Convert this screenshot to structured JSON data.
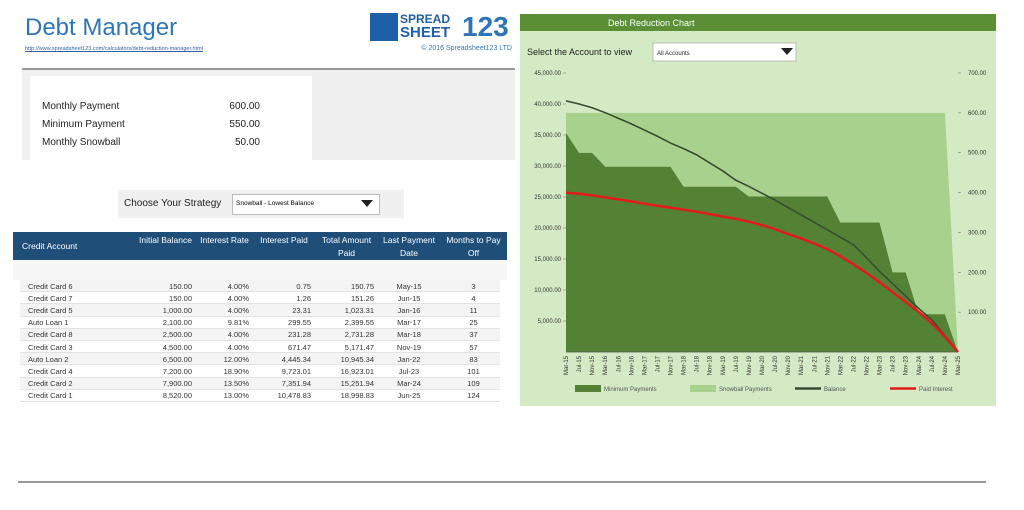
{
  "header": {
    "title": "Debt Manager",
    "link": "http://www.spreadsheet123.com/calculators/debt-reduction-manager.html",
    "logo": [
      "SPREAD",
      "SHEET",
      "123"
    ],
    "copyright": "© 2016 Spreadsheet123 LTD"
  },
  "summary": [
    {
      "label": "Monthly Payment",
      "value": "600.00"
    },
    {
      "label": "Minimum Payment",
      "value": "550.00"
    },
    {
      "label": "Monthly Snowball",
      "value": "50.00"
    }
  ],
  "strategy": {
    "label": "Choose Your Strategy",
    "selected": "Snowball - Lowest Balance"
  },
  "table": {
    "columns": [
      "Credit Account",
      "Initial Balance",
      "Interest Rate",
      "Interest Paid",
      "Total Amount Paid",
      "Last Payment Date",
      "Months to Pay Off"
    ],
    "rows": [
      [
        "Credit Card 6",
        "150.00",
        "4.00%",
        "0.75",
        "150.75",
        "May-15",
        "3"
      ],
      [
        "Credit Card 7",
        "150.00",
        "4.00%",
        "1.26",
        "151.26",
        "Jun-15",
        "4"
      ],
      [
        "Credit Card 5",
        "1,000.00",
        "4.00%",
        "23.31",
        "1,023.31",
        "Jan-16",
        "11"
      ],
      [
        "Auto Loan 1",
        "2,100.00",
        "9.81%",
        "299.55",
        "2,399.55",
        "Mar-17",
        "25"
      ],
      [
        "Credit Card 8",
        "2,500.00",
        "4.00%",
        "231.28",
        "2,731.28",
        "Mar-18",
        "37"
      ],
      [
        "Credit Card 3",
        "4,500.00",
        "4.00%",
        "671.47",
        "5,171.47",
        "Nov-19",
        "57"
      ],
      [
        "Auto Loan 2",
        "6,500.00",
        "12.00%",
        "4,445.34",
        "10,945.34",
        "Jan-22",
        "83"
      ],
      [
        "Credit Card 4",
        "7,200.00",
        "18.90%",
        "9,723.01",
        "16,923.01",
        "Jul-23",
        "101"
      ],
      [
        "Credit Card 2",
        "7,900.00",
        "13.50%",
        "7,351.94",
        "15,251.94",
        "Mar-24",
        "109"
      ],
      [
        "Credit Card 1",
        "8,520.00",
        "13.00%",
        "10,478.83",
        "18,998.83",
        "Jun-25",
        "124"
      ]
    ]
  },
  "chart": {
    "type": "area-line",
    "title": "Debt Reduction Chart",
    "selector_label": "Select the Account to view",
    "selector_value": "All Accounts",
    "categories": [
      "Mar-15",
      "Jul-15",
      "Nov-15",
      "Mar-16",
      "Jul-16",
      "Nov-16",
      "Mar-17",
      "Jul-17",
      "Nov-17",
      "Mar-18",
      "Jul-18",
      "Nov-18",
      "Mar-19",
      "Jul-19",
      "Nov-19",
      "Mar-20",
      "Jul-20",
      "Nov-20",
      "Mar-21",
      "Jul-21",
      "Nov-21",
      "Mar-22",
      "Jul-22",
      "Nov-22",
      "Mar-23",
      "Jul-23",
      "Nov-23",
      "Mar-24",
      "Jul-24",
      "Nov-24",
      "Mar-25"
    ],
    "ylim": [
      0,
      45000
    ],
    "yticks": [
      {
        "value": 5000,
        "label": "5,000.00"
      },
      {
        "value": 10000,
        "label": "10,000.00"
      },
      {
        "value": 15000,
        "label": "15,000.00"
      },
      {
        "value": 20000,
        "label": "20,000.00"
      },
      {
        "value": 25000,
        "label": "25,000.00"
      },
      {
        "value": 30000,
        "label": "30,000.00"
      },
      {
        "value": 35000,
        "label": "35,000.00"
      },
      {
        "value": 40000,
        "label": "40,000.00"
      },
      {
        "value": 45000,
        "label": "45,000.00"
      }
    ],
    "y2lim": [
      0,
      700
    ],
    "y2ticks": [
      {
        "value": 100,
        "label": "100.00"
      },
      {
        "value": 200,
        "label": "200.00"
      },
      {
        "value": 300,
        "label": "300.00"
      },
      {
        "value": 400,
        "label": "400.00"
      },
      {
        "value": 500,
        "label": "500.00"
      },
      {
        "value": 600,
        "label": "600.00"
      },
      {
        "value": 700,
        "label": "700.00"
      }
    ],
    "series": [
      {
        "name": "Minimum Payments",
        "kind": "area",
        "axis": "y2",
        "color": "#548235",
        "values": [
          550,
          500,
          500,
          465,
          465,
          465,
          465,
          465,
          465,
          415,
          415,
          415,
          415,
          415,
          390,
          390,
          390,
          390,
          390,
          390,
          390,
          325,
          325,
          325,
          325,
          200,
          200,
          95,
          95,
          95,
          0
        ]
      },
      {
        "name": "Snowball Payments",
        "kind": "area",
        "axis": "y2",
        "color": "#a9d18e",
        "values": [
          50,
          100,
          100,
          135,
          135,
          135,
          135,
          135,
          135,
          185,
          185,
          185,
          185,
          185,
          210,
          210,
          210,
          210,
          210,
          210,
          210,
          275,
          275,
          275,
          275,
          400,
          400,
          505,
          505,
          505,
          0
        ]
      },
      {
        "name": "Balance",
        "kind": "line",
        "color": "#3b4a33",
        "values": [
          40500,
          40000,
          39400,
          38600,
          37700,
          36800,
          35800,
          34800,
          33700,
          32800,
          31800,
          30500,
          29200,
          27700,
          26700,
          25600,
          24500,
          23300,
          22100,
          20900,
          19700,
          18500,
          17300,
          15200,
          13000,
          11000,
          9000,
          7000,
          5200,
          2600,
          0
        ]
      },
      {
        "name": "Paid Interest",
        "kind": "line",
        "axis": "y2",
        "color": "#e31a1a",
        "values": [
          400,
          397,
          393,
          388,
          383,
          378,
          372,
          367,
          362,
          357,
          352,
          346,
          340,
          334,
          327,
          318,
          308,
          296,
          285,
          272,
          258,
          240,
          220,
          198,
          175,
          150,
          125,
          100,
          72,
          38,
          0
        ]
      }
    ]
  }
}
